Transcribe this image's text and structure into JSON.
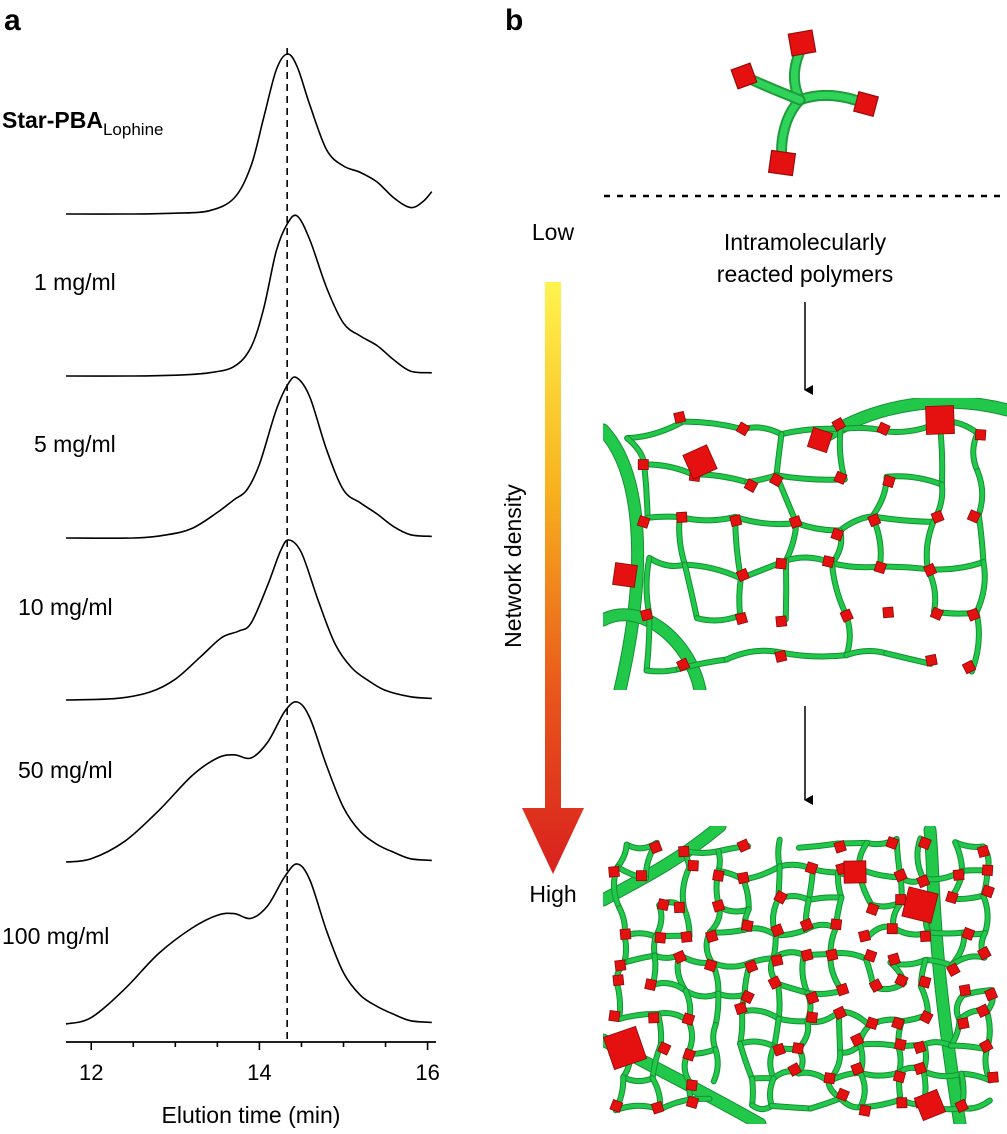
{
  "panel_a": {
    "letter": "a",
    "chart_data": {
      "type": "line",
      "xlabel": "Elution time (min)",
      "xlim": [
        11.7,
        16.1
      ],
      "xticks": [
        12,
        14,
        16
      ],
      "reference_line_x": 14.33,
      "series": [
        {
          "label_main": "Star-PBA",
          "label_sub": "Lophine",
          "shoulder_height": 0.0,
          "points": [
            [
              11.7,
              0.0
            ],
            [
              12.5,
              0.0
            ],
            [
              13.0,
              0.005
            ],
            [
              13.4,
              0.02
            ],
            [
              13.7,
              0.1
            ],
            [
              13.9,
              0.3
            ],
            [
              14.05,
              0.6
            ],
            [
              14.2,
              0.9
            ],
            [
              14.33,
              1.0
            ],
            [
              14.45,
              0.92
            ],
            [
              14.6,
              0.68
            ],
            [
              14.8,
              0.4
            ],
            [
              15.0,
              0.3
            ],
            [
              15.2,
              0.26
            ],
            [
              15.4,
              0.2
            ],
            [
              15.6,
              0.1
            ],
            [
              15.8,
              0.04
            ],
            [
              15.95,
              0.08
            ],
            [
              16.05,
              0.14
            ]
          ]
        },
        {
          "label_main": "1 mg/ml",
          "label_sub": "",
          "shoulder_height": 0.0,
          "points": [
            [
              11.7,
              0.0
            ],
            [
              12.5,
              0.0
            ],
            [
              13.0,
              0.005
            ],
            [
              13.4,
              0.02
            ],
            [
              13.7,
              0.06
            ],
            [
              13.9,
              0.18
            ],
            [
              14.05,
              0.42
            ],
            [
              14.2,
              0.78
            ],
            [
              14.33,
              0.95
            ],
            [
              14.45,
              1.0
            ],
            [
              14.6,
              0.85
            ],
            [
              14.8,
              0.55
            ],
            [
              15.0,
              0.33
            ],
            [
              15.2,
              0.25
            ],
            [
              15.4,
              0.19
            ],
            [
              15.6,
              0.1
            ],
            [
              15.8,
              0.03
            ],
            [
              16.05,
              0.02
            ]
          ]
        },
        {
          "label_main": "5 mg/ml",
          "label_sub": "",
          "shoulder_height": 0.0,
          "points": [
            [
              11.7,
              0.0
            ],
            [
              12.5,
              0.0
            ],
            [
              12.9,
              0.02
            ],
            [
              13.2,
              0.06
            ],
            [
              13.5,
              0.16
            ],
            [
              13.7,
              0.24
            ],
            [
              13.85,
              0.3
            ],
            [
              14.0,
              0.46
            ],
            [
              14.2,
              0.8
            ],
            [
              14.35,
              0.97
            ],
            [
              14.45,
              1.0
            ],
            [
              14.6,
              0.88
            ],
            [
              14.8,
              0.55
            ],
            [
              15.0,
              0.3
            ],
            [
              15.2,
              0.22
            ],
            [
              15.4,
              0.15
            ],
            [
              15.6,
              0.07
            ],
            [
              15.8,
              0.02
            ],
            [
              16.05,
              0.01
            ]
          ]
        },
        {
          "label_main": "10 mg/ml",
          "label_sub": "",
          "shoulder_height": 0.0,
          "points": [
            [
              11.7,
              0.0
            ],
            [
              12.3,
              0.01
            ],
            [
              12.7,
              0.05
            ],
            [
              13.0,
              0.13
            ],
            [
              13.3,
              0.27
            ],
            [
              13.55,
              0.39
            ],
            [
              13.75,
              0.43
            ],
            [
              13.9,
              0.48
            ],
            [
              14.1,
              0.72
            ],
            [
              14.25,
              0.93
            ],
            [
              14.35,
              1.0
            ],
            [
              14.5,
              0.92
            ],
            [
              14.7,
              0.62
            ],
            [
              14.9,
              0.35
            ],
            [
              15.1,
              0.2
            ],
            [
              15.3,
              0.12
            ],
            [
              15.5,
              0.06
            ],
            [
              15.8,
              0.02
            ],
            [
              16.05,
              0.01
            ]
          ]
        },
        {
          "label_main": "50 mg/ml",
          "label_sub": "",
          "shoulder_height": 0.0,
          "points": [
            [
              11.7,
              0.0
            ],
            [
              12.0,
              0.02
            ],
            [
              12.4,
              0.13
            ],
            [
              12.8,
              0.32
            ],
            [
              13.2,
              0.54
            ],
            [
              13.5,
              0.65
            ],
            [
              13.7,
              0.67
            ],
            [
              13.9,
              0.65
            ],
            [
              14.1,
              0.75
            ],
            [
              14.3,
              0.94
            ],
            [
              14.45,
              1.0
            ],
            [
              14.6,
              0.9
            ],
            [
              14.8,
              0.6
            ],
            [
              15.0,
              0.34
            ],
            [
              15.2,
              0.19
            ],
            [
              15.4,
              0.11
            ],
            [
              15.6,
              0.06
            ],
            [
              15.8,
              0.02
            ],
            [
              16.05,
              0.01
            ]
          ]
        },
        {
          "label_main": "100 mg/ml",
          "label_sub": "",
          "shoulder_height": 0.0,
          "points": [
            [
              11.7,
              0.0
            ],
            [
              12.0,
              0.04
            ],
            [
              12.4,
              0.22
            ],
            [
              12.8,
              0.44
            ],
            [
              13.2,
              0.6
            ],
            [
              13.5,
              0.68
            ],
            [
              13.7,
              0.69
            ],
            [
              13.9,
              0.66
            ],
            [
              14.1,
              0.74
            ],
            [
              14.3,
              0.92
            ],
            [
              14.45,
              1.0
            ],
            [
              14.6,
              0.9
            ],
            [
              14.8,
              0.58
            ],
            [
              15.0,
              0.32
            ],
            [
              15.2,
              0.18
            ],
            [
              15.4,
              0.11
            ],
            [
              15.6,
              0.06
            ],
            [
              15.8,
              0.02
            ],
            [
              16.05,
              0.01
            ]
          ]
        }
      ]
    }
  },
  "panel_b": {
    "letter": "b",
    "low_label": "Low",
    "high_label": "High",
    "axis_label": "Network density",
    "intra_line1": "Intramolecularly",
    "intra_line2": "reacted polymers",
    "gradient_colors": [
      "#fff44f",
      "#f7b21e",
      "#e8551c",
      "#d9201e"
    ],
    "polymer_color": "#22c84a",
    "end_group_color": "#e51010"
  }
}
